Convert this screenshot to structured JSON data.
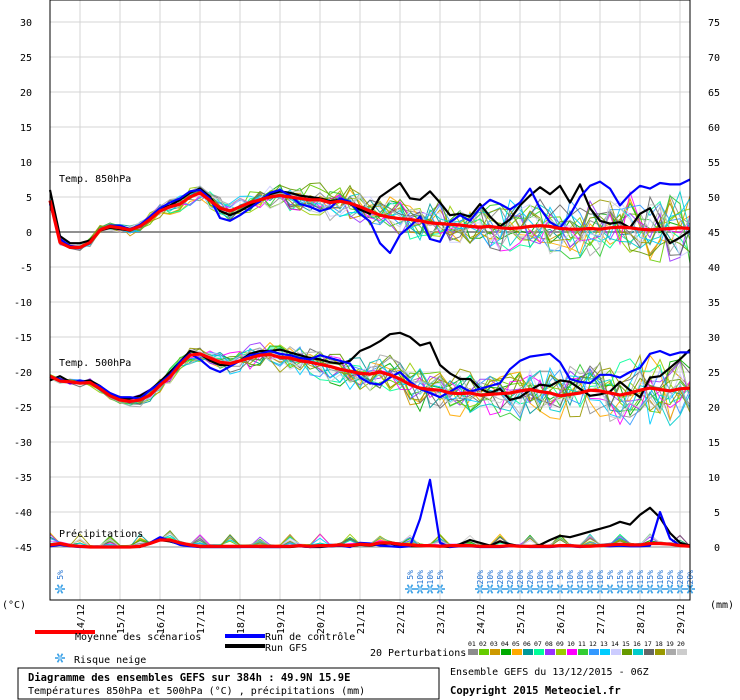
{
  "chart_data": {
    "type": "line",
    "title": "Diagramme des ensembles GEFS sur 384h : 49.9N 15.9E",
    "subtitle": "Températures 850hPa et 500hPa (°C) , précipitations (mm)",
    "run_info": "Ensemble GEFS du 13/12/2015 - 06Z",
    "copyright": "Copyright 2015 Meteociel.fr",
    "left_axis_unit": "(°C)",
    "right_axis_unit": "(mm)",
    "left_ticks": [
      "30",
      "25",
      "20",
      "15",
      "10",
      "5",
      "0",
      "-5",
      "-10",
      "-15",
      "-20",
      "-25",
      "-30",
      "-35",
      "-40",
      "-45"
    ],
    "left_tick_values": [
      30,
      25,
      20,
      15,
      10,
      5,
      0,
      -5,
      -10,
      -15,
      -20,
      -25,
      -30,
      -35,
      -40,
      -45
    ],
    "right_ticks": [
      "75",
      "70",
      "65",
      "60",
      "55",
      "50",
      "45",
      "40",
      "35",
      "30",
      "25",
      "20",
      "15",
      "10",
      "5",
      "0"
    ],
    "x_labels": [
      "14/12",
      "15/12",
      "16/12",
      "17/12",
      "18/12",
      "19/12",
      "20/12",
      "21/12",
      "22/12",
      "23/12",
      "24/12",
      "25/12",
      "26/12",
      "27/12",
      "28/12",
      "29/12"
    ],
    "panel_labels": {
      "t850": "Temp. 850hPa",
      "t500": "Temp. 500hPa",
      "precip": "Précipitations"
    },
    "snow_risk": [
      {
        "hours": 6,
        "label": "5%"
      },
      {
        "hours": 216,
        "label": "5%"
      },
      {
        "hours": 222,
        "label": "10%"
      },
      {
        "hours": 228,
        "label": "10%"
      },
      {
        "hours": 234,
        "label": "5%"
      },
      {
        "hours": 258,
        "label": "20%"
      },
      {
        "hours": 264,
        "label": "10%"
      },
      {
        "hours": 270,
        "label": "20%"
      },
      {
        "hours": 276,
        "label": "20%"
      },
      {
        "hours": 282,
        "label": "20%"
      },
      {
        "hours": 288,
        "label": "20%"
      },
      {
        "hours": 294,
        "label": "10%"
      },
      {
        "hours": 300,
        "label": "10%"
      },
      {
        "hours": 306,
        "label": "5%"
      },
      {
        "hours": 312,
        "label": "10%"
      },
      {
        "hours": 318,
        "label": "10%"
      },
      {
        "hours": 324,
        "label": "10%"
      },
      {
        "hours": 330,
        "label": "10%"
      },
      {
        "hours": 336,
        "label": "5%"
      },
      {
        "hours": 342,
        "label": "15%"
      },
      {
        "hours": 348,
        "label": "15%"
      },
      {
        "hours": 354,
        "label": "15%"
      },
      {
        "hours": 360,
        "label": "15%"
      },
      {
        "hours": 366,
        "label": "10%"
      },
      {
        "hours": 372,
        "label": "25%"
      },
      {
        "hours": 378,
        "label": "20%"
      },
      {
        "hours": 384,
        "label": "20%"
      }
    ],
    "series": [
      {
        "name": "Moyenne des scénarios",
        "key": "mean",
        "color": "#ff0000",
        "t850": [
          4.5,
          -1.5,
          -2.2,
          -2.2,
          -1.5,
          0.3,
          0.8,
          0.6,
          0.3,
          0.8,
          1.8,
          3.0,
          3.6,
          4.0,
          5.0,
          5.6,
          4.5,
          3.4,
          3.0,
          3.6,
          4.2,
          4.6,
          5.0,
          5.2,
          5.0,
          4.8,
          4.6,
          4.6,
          4.2,
          4.4,
          4.1,
          3.6,
          3.0,
          2.4,
          2.1,
          1.9,
          1.8,
          1.6,
          1.3,
          1.2,
          1.1,
          1.0,
          0.8,
          0.7,
          0.8,
          0.6,
          0.5,
          0.6,
          0.8,
          0.9,
          0.8,
          0.5,
          0.4,
          0.4,
          0.5,
          0.4,
          0.6,
          0.7,
          0.6,
          0.4,
          0.3,
          0.4,
          0.5,
          0.6,
          0.5
        ],
        "t500": [
          -20.6,
          -21.3,
          -21.4,
          -21.6,
          -21.5,
          -22.4,
          -23.4,
          -24.0,
          -24.2,
          -24.0,
          -23.3,
          -21.9,
          -20.7,
          -19.0,
          -17.6,
          -17.4,
          -18.0,
          -18.6,
          -18.8,
          -18.4,
          -18.0,
          -17.6,
          -17.5,
          -17.9,
          -18.0,
          -18.4,
          -18.6,
          -18.9,
          -19.2,
          -19.6,
          -19.9,
          -20.2,
          -20.3,
          -20.0,
          -20.4,
          -21.0,
          -21.8,
          -22.3,
          -22.5,
          -22.6,
          -23.0,
          -23.1,
          -23.0,
          -23.3,
          -23.2,
          -23.1,
          -23.0,
          -22.7,
          -22.5,
          -22.8,
          -23.0,
          -23.4,
          -23.2,
          -23.0,
          -22.6,
          -22.7,
          -23.0,
          -23.3,
          -23.0,
          -22.6,
          -22.3,
          -22.5,
          -22.7,
          -22.4,
          -22.3
        ],
        "precip": [
          0.3,
          0.5,
          0.2,
          0.1,
          0,
          0,
          0,
          0,
          0,
          0.1,
          0.5,
          1.0,
          1.0,
          0.6,
          0.3,
          0.1,
          0.1,
          0.1,
          0.1,
          0.1,
          0.1,
          0.1,
          0.1,
          0.1,
          0.1,
          0.2,
          0.1,
          0.2,
          0.2,
          0.3,
          0.2,
          0.4,
          0.3,
          0.6,
          0.6,
          0.4,
          0.3,
          0.2,
          0.2,
          0.1,
          0.2,
          0.2,
          0.2,
          0.1,
          0.1,
          0.1,
          0.2,
          0.1,
          0.1,
          0.1,
          0.1,
          0.2,
          0.2,
          0.1,
          0.1,
          0.2,
          0.3,
          0.4,
          0.3,
          0.3,
          0.5,
          0.5,
          0.4,
          0.2,
          0.1
        ]
      },
      {
        "name": "Run de contrôle",
        "key": "control",
        "color": "#0000ff",
        "t850": [
          4.0,
          -1.0,
          -2.0,
          -2.2,
          -1.6,
          0.2,
          0.9,
          0.9,
          0.4,
          1.0,
          2.2,
          3.4,
          4.2,
          4.8,
          5.8,
          6.0,
          4.8,
          2.0,
          1.6,
          2.4,
          3.4,
          4.4,
          5.6,
          6.0,
          5.2,
          4.0,
          3.6,
          3.0,
          3.4,
          4.8,
          4.3,
          2.6,
          1.5,
          -1.6,
          -3.0,
          -0.4,
          0.8,
          2.2,
          -1.0,
          -1.4,
          1.4,
          2.4,
          1.6,
          3.4,
          4.6,
          4.0,
          3.2,
          4.2,
          6.2,
          3.4,
          1.4,
          0.6,
          2.4,
          5.0,
          6.6,
          7.2,
          6.2,
          3.8,
          5.4,
          6.6,
          6.2,
          7.0,
          6.8,
          6.8,
          7.5
        ],
        "t500": [
          -20.8,
          -21.0,
          -21.6,
          -21.2,
          -21.6,
          -22.0,
          -23.0,
          -23.6,
          -23.6,
          -23.8,
          -22.6,
          -21.6,
          -20.4,
          -18.6,
          -17.4,
          -18.2,
          -19.4,
          -20.0,
          -19.2,
          -18.4,
          -17.6,
          -17.4,
          -17.0,
          -17.4,
          -17.6,
          -18.0,
          -18.2,
          -17.6,
          -18.0,
          -18.4,
          -18.8,
          -20.8,
          -21.6,
          -21.8,
          -20.8,
          -20.0,
          -21.4,
          -22.4,
          -23.0,
          -23.6,
          -22.8,
          -22.0,
          -22.8,
          -22.4,
          -22.0,
          -21.6,
          -19.6,
          -18.4,
          -17.8,
          -17.6,
          -17.4,
          -18.6,
          -21.0,
          -21.4,
          -21.6,
          -20.4,
          -20.4,
          -20.8,
          -20.0,
          -19.4,
          -17.4,
          -17.0,
          -17.6,
          -17.2,
          -17.2
        ],
        "precip": [
          0.1,
          0.3,
          0.1,
          0,
          0,
          0,
          0,
          0,
          0,
          0.1,
          0.6,
          1.4,
          0.9,
          0.3,
          0.1,
          0,
          0,
          0,
          0,
          0,
          0,
          0,
          0,
          0,
          0.1,
          0.1,
          0,
          0.1,
          0.1,
          0.2,
          0,
          0.6,
          0.5,
          0.2,
          0.1,
          0,
          0.1,
          4.0,
          9.6,
          0.6,
          0,
          0.1,
          0.1,
          0,
          0,
          0,
          0.1,
          0.1,
          0,
          0,
          0,
          0.1,
          0.1,
          0,
          0.1,
          0.2,
          0.1,
          0.2,
          0.1,
          0.1,
          0.2,
          5.0,
          1.2,
          0.2,
          0.1
        ]
      },
      {
        "name": "Run GFS",
        "key": "gfs",
        "color": "#000000",
        "t850": [
          6.0,
          -0.6,
          -1.6,
          -1.6,
          -1.2,
          0.2,
          0.6,
          0.4,
          0.2,
          0.8,
          2.0,
          3.2,
          3.8,
          4.6,
          5.6,
          6.2,
          5.0,
          3.0,
          2.4,
          3.0,
          3.8,
          4.6,
          5.4,
          5.8,
          5.6,
          5.2,
          5.0,
          4.8,
          4.4,
          4.6,
          4.0,
          3.2,
          2.6,
          5.0,
          6.0,
          7.0,
          4.8,
          4.6,
          5.8,
          4.2,
          2.4,
          2.6,
          2.2,
          4.0,
          2.2,
          0.8,
          1.8,
          3.8,
          5.2,
          6.4,
          5.4,
          6.6,
          4.2,
          6.8,
          3.4,
          1.6,
          1.2,
          1.4,
          0.6,
          2.6,
          3.4,
          0.6,
          -1.6,
          -0.8,
          0.2
        ],
        "t500": [
          -21.2,
          -20.6,
          -21.4,
          -21.4,
          -21.2,
          -22.0,
          -23.2,
          -23.8,
          -23.8,
          -23.4,
          -22.6,
          -21.4,
          -20.0,
          -18.6,
          -17.0,
          -17.4,
          -18.4,
          -19.0,
          -19.0,
          -18.4,
          -17.4,
          -17.0,
          -17.0,
          -16.8,
          -17.2,
          -17.6,
          -18.0,
          -18.2,
          -18.6,
          -18.8,
          -18.4,
          -17.0,
          -16.4,
          -15.6,
          -14.6,
          -14.4,
          -15.0,
          -16.2,
          -15.8,
          -19.0,
          -20.2,
          -21.0,
          -21.0,
          -22.4,
          -23.0,
          -22.4,
          -24.0,
          -23.6,
          -22.6,
          -21.8,
          -22.0,
          -21.2,
          -21.4,
          -22.4,
          -23.4,
          -23.2,
          -22.8,
          -21.4,
          -22.6,
          -23.6,
          -20.8,
          -20.6,
          -19.4,
          -18.2,
          -16.8
        ],
        "precip": [
          0.2,
          0.4,
          0.2,
          0.1,
          0,
          0,
          0,
          0,
          0,
          0,
          0.5,
          1.0,
          0.8,
          0.4,
          0.2,
          0,
          0,
          0,
          0,
          0,
          0.1,
          0,
          0,
          0,
          0,
          0.1,
          0,
          0,
          0.1,
          0.2,
          0.1,
          0.3,
          0.2,
          0.4,
          0.5,
          0.2,
          0.1,
          0.1,
          0.2,
          0.1,
          0,
          0.4,
          1.0,
          0.6,
          0.2,
          0.8,
          0.4,
          0.1,
          0.1,
          0.3,
          1.0,
          1.6,
          1.4,
          1.8,
          2.2,
          2.6,
          3.0,
          3.6,
          3.2,
          4.6,
          5.6,
          4.2,
          2.0,
          0.6,
          0.2
        ]
      }
    ],
    "perturbations_title": "20 Perturbations",
    "perturbations": [
      {
        "label": "01",
        "color": "#8c8c8c"
      },
      {
        "label": "02",
        "color": "#66cc00"
      },
      {
        "label": "03",
        "color": "#cc9900"
      },
      {
        "label": "04",
        "color": "#00aa00"
      },
      {
        "label": "05",
        "color": "#ffaa00"
      },
      {
        "label": "06",
        "color": "#009999"
      },
      {
        "label": "07",
        "color": "#00ff99"
      },
      {
        "label": "08",
        "color": "#9933ff"
      },
      {
        "label": "09",
        "color": "#99cc00"
      },
      {
        "label": "10",
        "color": "#ff00ff"
      },
      {
        "label": "11",
        "color": "#33cc33"
      },
      {
        "label": "12",
        "color": "#3399ff"
      },
      {
        "label": "13",
        "color": "#00ccff"
      },
      {
        "label": "14",
        "color": "#ccccff"
      },
      {
        "label": "15",
        "color": "#669900"
      },
      {
        "label": "16",
        "color": "#00cccc"
      },
      {
        "label": "17",
        "color": "#666666"
      },
      {
        "label": "18",
        "color": "#999900"
      },
      {
        "label": "19",
        "color": "#aaaaaa"
      },
      {
        "label": "20",
        "color": "#cccccc"
      }
    ],
    "legend": {
      "mean_label": "Moyenne des scénarios",
      "control_label": "Run de contrôle",
      "gfs_label": "Run GFS",
      "snow_label": "Risque neige"
    }
  }
}
